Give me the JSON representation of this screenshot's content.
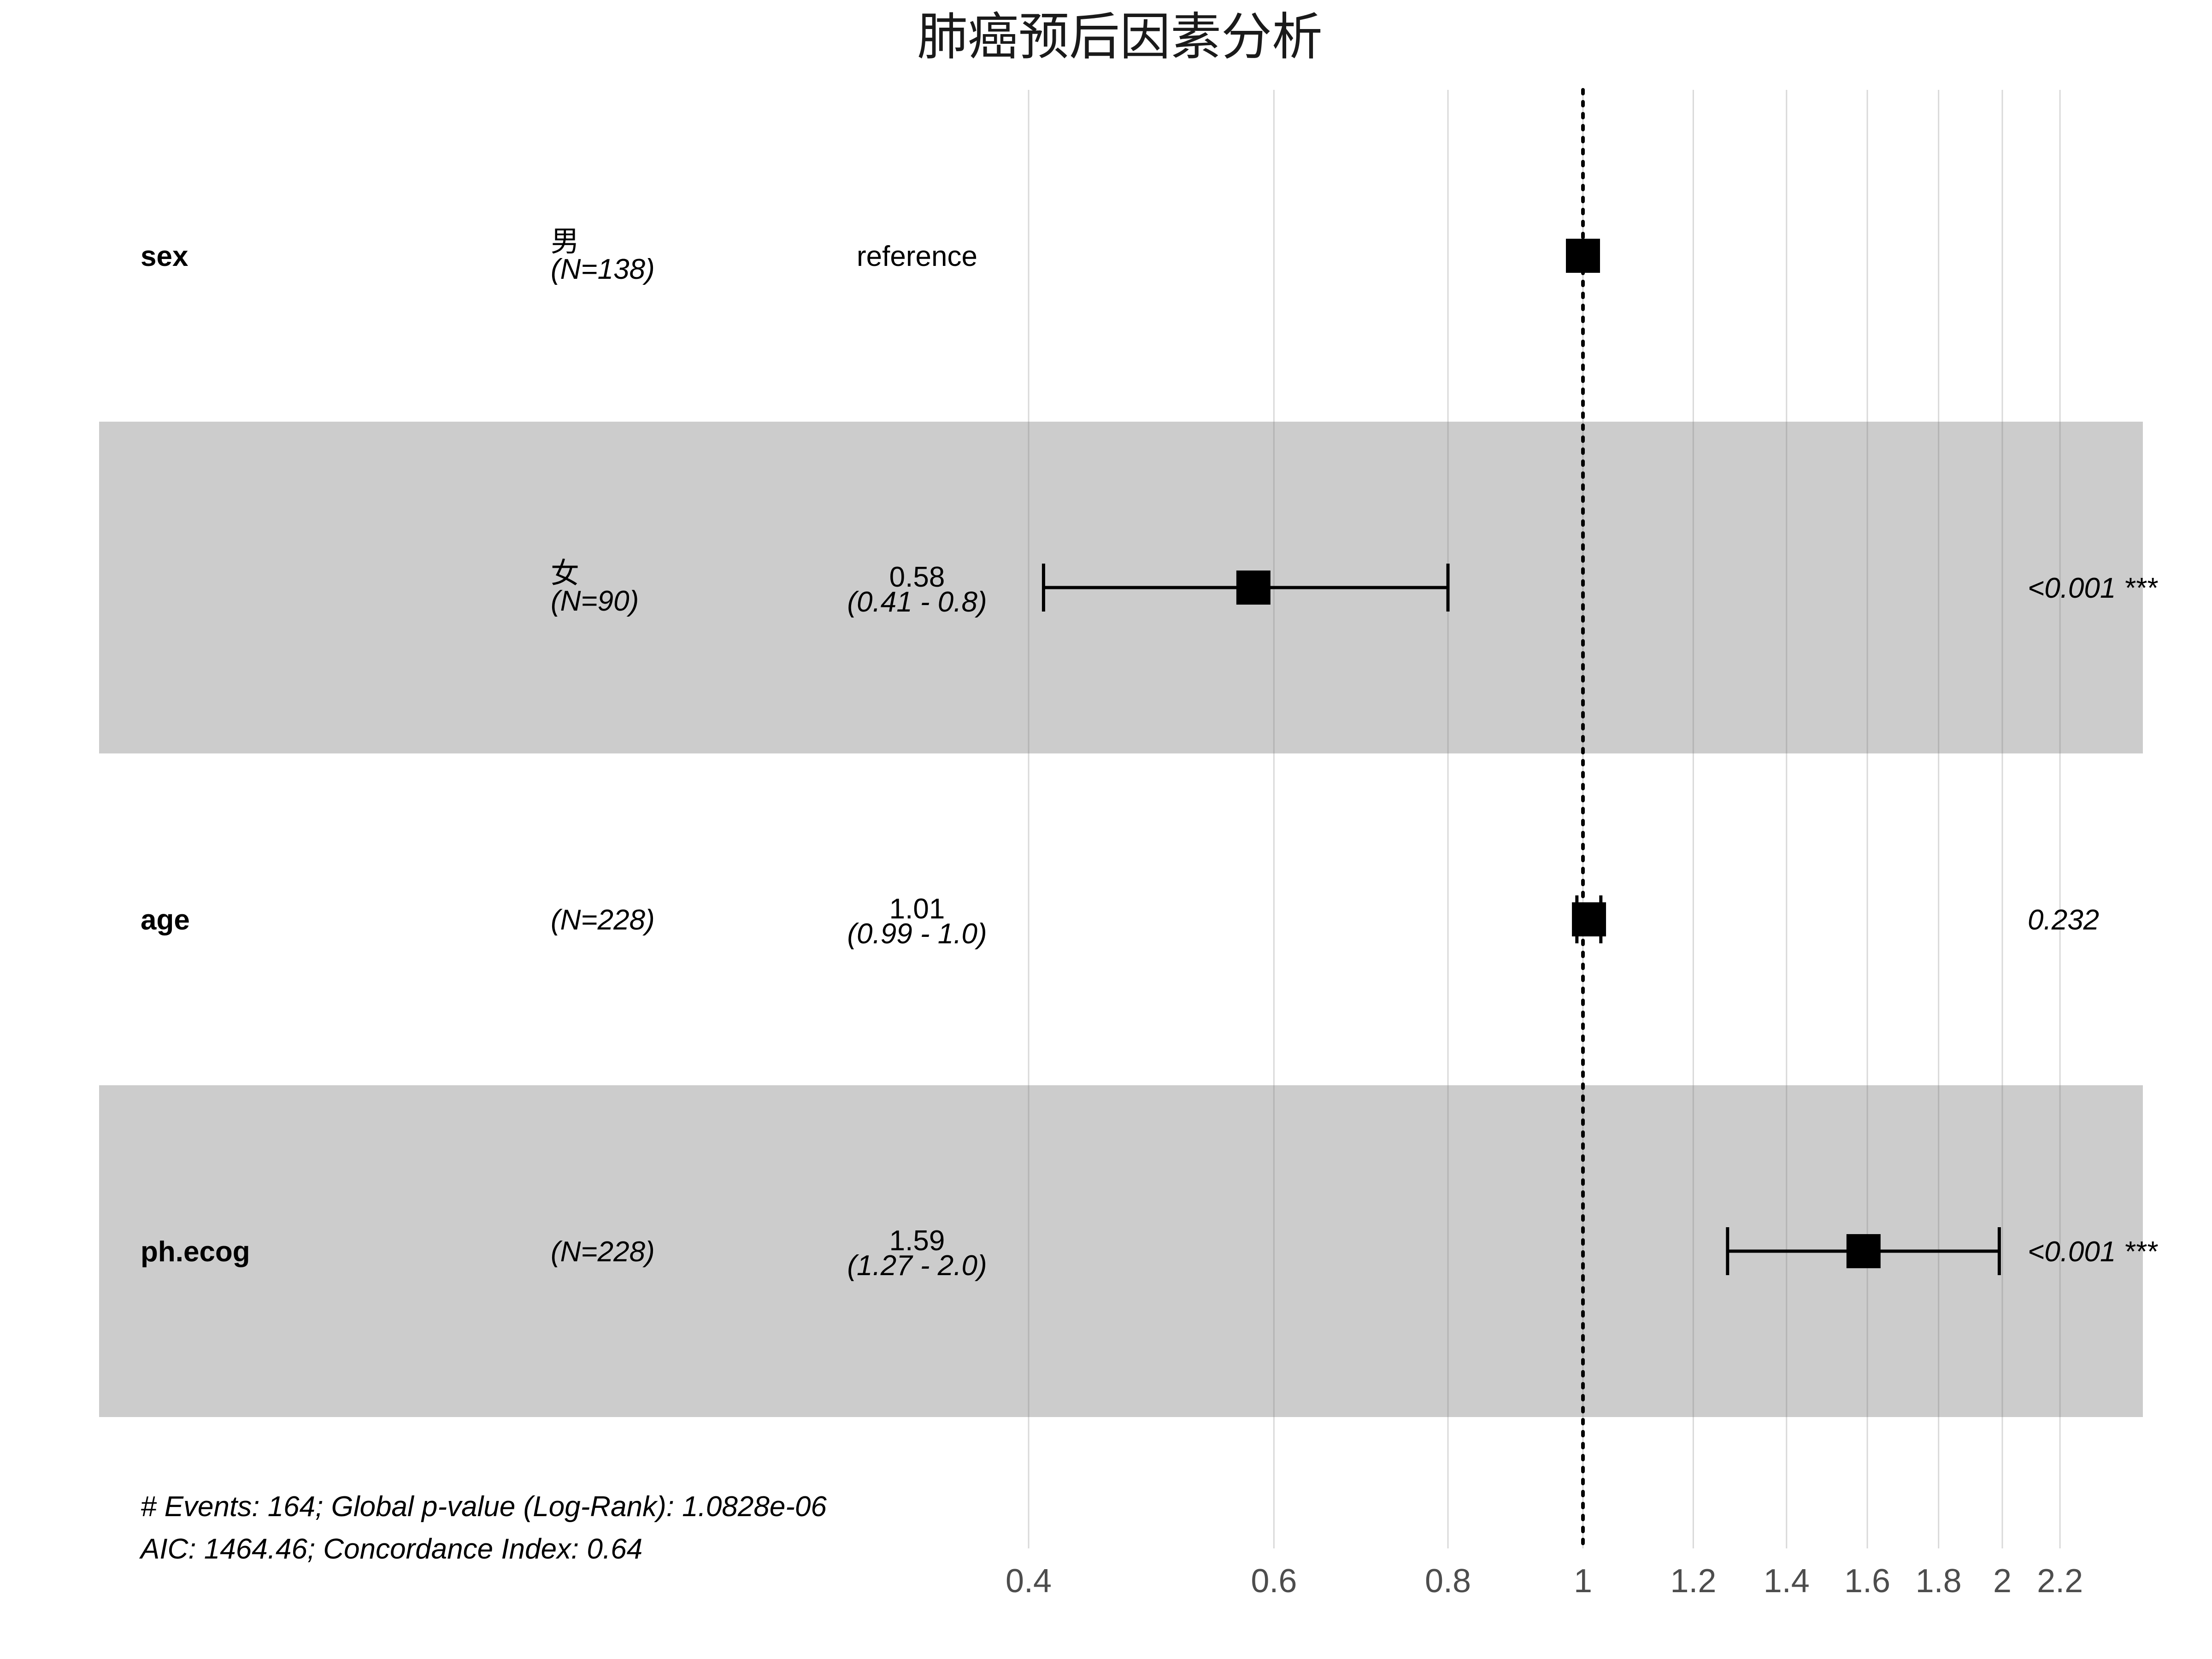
{
  "chart_data": {
    "type": "forest",
    "title": "肺癌预后因素分析",
    "x_scale": "log",
    "x_ticks": [
      0.4,
      0.6,
      0.8,
      1,
      1.2,
      1.4,
      1.6,
      1.8,
      2,
      2.2
    ],
    "x_tick_labels": [
      "0.4",
      "0.6",
      "0.8",
      "1",
      "1.2",
      "1.4",
      "1.6",
      "1.8",
      "2",
      "2.2"
    ],
    "reference_line": 1,
    "rows": [
      {
        "variable": "sex",
        "level": "男",
        "n": "(N=138)",
        "estimate_text": "reference",
        "ci_text": "",
        "p_text": "",
        "hr": 1.0,
        "lower": null,
        "upper": null,
        "shaded": false
      },
      {
        "variable": "",
        "level": "女",
        "n": "(N=90)",
        "estimate_text": "0.58",
        "ci_text": "(0.41 - 0.8)",
        "p_text": "<0.001 ***",
        "hr": 0.58,
        "lower": 0.41,
        "upper": 0.8,
        "shaded": true
      },
      {
        "variable": "age",
        "level": "",
        "n": "(N=228)",
        "estimate_text": "1.01",
        "ci_text": "(0.99 - 1.0)",
        "p_text": "0.232",
        "hr": 1.01,
        "lower": 0.99,
        "upper": 1.03,
        "shaded": false
      },
      {
        "variable": "ph.ecog",
        "level": "",
        "n": "(N=228)",
        "estimate_text": "1.59",
        "ci_text": "(1.27 - 2.0)",
        "p_text": "<0.001 ***",
        "hr": 1.59,
        "lower": 1.27,
        "upper": 1.99,
        "shaded": true
      }
    ],
    "footnotes": [
      "# Events: 164; Global p-value (Log-Rank): 1.0828e-06",
      "AIC: 1464.46; Concordance Index: 0.64"
    ],
    "colors": {
      "shade": "#cccccc",
      "grid": "#dcdcdc",
      "marker": "#000000"
    }
  }
}
